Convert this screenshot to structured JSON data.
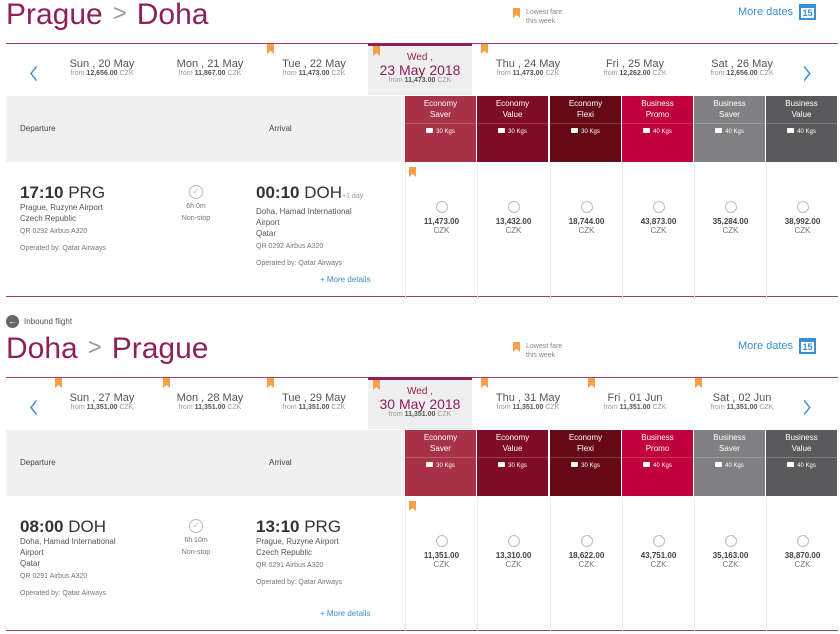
{
  "inbound_label": "Inbound flight",
  "legend_text": "Lowest fare this week",
  "more_dates": "More dates",
  "calendar_day": "15",
  "header": {
    "departure": "Departure",
    "arrival": "Arrival"
  },
  "more_details": "+ More details",
  "fare_types": [
    {
      "line1": "Economy",
      "line2": "Saver",
      "bag": "30 Kgs",
      "color": "#a83246"
    },
    {
      "line1": "Economy",
      "line2": "Value",
      "bag": "30 Kgs",
      "color": "#7f0b24"
    },
    {
      "line1": "Economy",
      "line2": "Flexi",
      "bag": "30 Kgs",
      "color": "#650a14"
    },
    {
      "line1": "Business",
      "line2": "Promo",
      "bag": "40 Kgs",
      "color": "#c0013b"
    },
    {
      "line1": "Business",
      "line2": "Saver",
      "bag": "40 Kgs",
      "color": "#808083"
    },
    {
      "line1": "Business",
      "line2": "Value",
      "bag": "40 Kgs",
      "color": "#5a5a5c"
    }
  ],
  "sections": [
    {
      "origin": "Prague",
      "destination": "Doha",
      "dates": [
        {
          "label": "Sun , 20 May",
          "from": "from",
          "price": "12,656.00",
          "cur": "CZK",
          "lowest": false
        },
        {
          "label": "Mon , 21 May",
          "from": "from",
          "price": "11,867.00",
          "cur": "CZK",
          "lowest": false
        },
        {
          "label": "Tue , 22 May",
          "from": "from",
          "price": "11,473.00",
          "cur": "CZK",
          "lowest": true
        },
        {
          "label": "Wed ,",
          "big": "23 May 2018",
          "from": "from",
          "price": "11,473.00",
          "cur": "CZK",
          "lowest": true,
          "selected": true
        },
        {
          "label": "Thu , 24 May",
          "from": "from",
          "price": "11,473.00",
          "cur": "CZK",
          "lowest": true
        },
        {
          "label": "Fri , 25 May",
          "from": "from",
          "price": "12,262.00",
          "cur": "CZK",
          "lowest": false
        },
        {
          "label": "Sat , 26 May",
          "from": "from",
          "price": "12,656.00",
          "cur": "CZK",
          "lowest": false
        }
      ],
      "flight": {
        "dep_time": "17:10",
        "dep_code": "PRG",
        "dep_lines": [
          "Prague, Ruzyne Airport",
          "Czech Republic"
        ],
        "dep_flight": "QR 0292 Airbus A320",
        "dep_operated": "Operated by: Qatar Airways",
        "duration": "6h 0m",
        "stops": "Non-stop",
        "arr_time": "00:10",
        "arr_code": "DOH",
        "arr_day": "+1 day",
        "arr_lines": [
          "Doha, Hamad International",
          "Airport",
          "Qatar"
        ],
        "arr_flight": "QR 0292 Airbus A320",
        "arr_operated": "Operated by: Qatar Airways"
      },
      "prices": [
        "11,473.00",
        "13,432.00",
        "18,744.00",
        "43,873.00",
        "35,284.00",
        "38,992.00"
      ],
      "currency": "CZK"
    },
    {
      "origin": "Doha",
      "destination": "Prague",
      "dates": [
        {
          "label": "Sun , 27 May",
          "from": "from",
          "price": "11,351.00",
          "cur": "CZK",
          "lowest": true
        },
        {
          "label": "Mon , 28 May",
          "from": "from",
          "price": "11,351.00",
          "cur": "CZK",
          "lowest": true
        },
        {
          "label": "Tue , 29 May",
          "from": "from",
          "price": "11,351.00",
          "cur": "CZK",
          "lowest": true
        },
        {
          "label": "Wed ,",
          "big": "30 May 2018",
          "from": "from",
          "price": "11,351.00",
          "cur": "CZK",
          "lowest": true,
          "selected": true
        },
        {
          "label": "Thu , 31 May",
          "from": "from",
          "price": "11,351.00",
          "cur": "CZK",
          "lowest": true
        },
        {
          "label": "Fri , 01 Jun",
          "from": "from",
          "price": "11,351.00",
          "cur": "CZK",
          "lowest": true
        },
        {
          "label": "Sat , 02 Jun",
          "from": "from",
          "price": "11,351.00",
          "cur": "CZK",
          "lowest": true
        }
      ],
      "flight": {
        "dep_time": "08:00",
        "dep_code": "DOH",
        "dep_lines": [
          "Doha, Hamad International",
          "Airport",
          "Qatar"
        ],
        "dep_flight": "QR 0291 Airbus A320",
        "dep_operated": "Operated by: Qatar Airways",
        "duration": "6h 10m",
        "stops": "Non-stop",
        "arr_time": "13:10",
        "arr_code": "PRG",
        "arr_lines": [
          "Prague, Ruzyne Airport",
          "Czech Republic"
        ],
        "arr_flight": "QR 0291 Airbus A320",
        "arr_operated": "Operated by: Qatar Airways"
      },
      "prices": [
        "11,351.00",
        "13,310.00",
        "18,622.00",
        "43,751.00",
        "35,163.00",
        "38,870.00"
      ],
      "currency": "CZK"
    }
  ]
}
